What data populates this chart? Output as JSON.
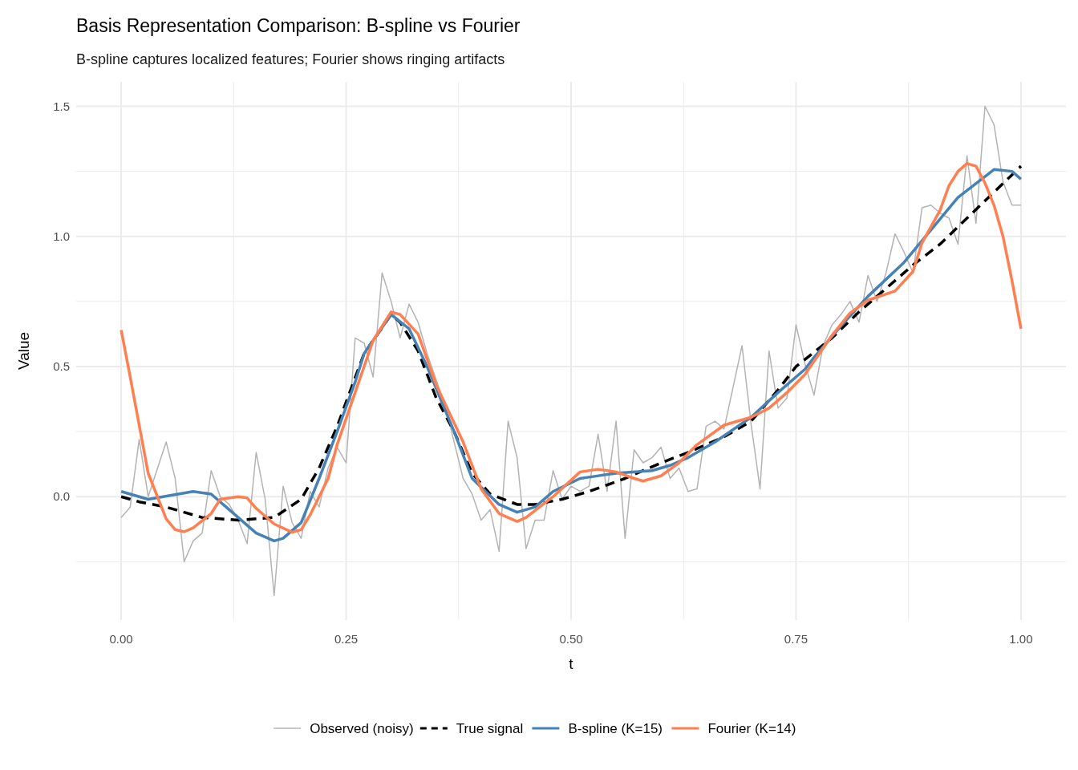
{
  "chart_data": {
    "type": "line",
    "title": "Basis Representation Comparison: B-spline vs Fourier",
    "subtitle": "B-spline captures localized features; Fourier shows ringing artifacts",
    "xlabel": "t",
    "ylabel": "Value",
    "xlim": [
      -0.05,
      1.05
    ],
    "ylim": [
      -0.474,
      1.594
    ],
    "xticks": [
      {
        "value": 0,
        "label": "0.00"
      },
      {
        "value": 0.25,
        "label": "0.25"
      },
      {
        "value": 0.5,
        "label": "0.50"
      },
      {
        "value": 0.75,
        "label": "0.75"
      },
      {
        "value": 1,
        "label": "1.00"
      }
    ],
    "yticks": [
      {
        "value": 0,
        "label": "0.0"
      },
      {
        "value": 0.5,
        "label": "0.5"
      },
      {
        "value": 1,
        "label": "1.0"
      },
      {
        "value": 1.5,
        "label": "1.5"
      }
    ],
    "grid": true,
    "legend": "bottom",
    "series": [
      {
        "name": "Observed (noisy)",
        "color": "#b3b3b3",
        "line_style": "solid",
        "x": [
          0,
          0.01,
          0.02,
          0.03,
          0.05,
          0.06,
          0.07,
          0.08,
          0.09,
          0.1,
          0.11,
          0.12,
          0.13,
          0.14,
          0.15,
          0.16,
          0.17,
          0.18,
          0.19,
          0.2,
          0.21,
          0.22,
          0.23,
          0.24,
          0.25,
          0.26,
          0.27,
          0.28,
          0.29,
          0.3,
          0.31,
          0.32,
          0.33,
          0.34,
          0.35,
          0.36,
          0.37,
          0.38,
          0.39,
          0.4,
          0.41,
          0.42,
          0.43,
          0.44,
          0.45,
          0.46,
          0.47,
          0.48,
          0.49,
          0.5,
          0.51,
          0.52,
          0.53,
          0.54,
          0.55,
          0.56,
          0.57,
          0.58,
          0.59,
          0.6,
          0.61,
          0.62,
          0.63,
          0.64,
          0.65,
          0.66,
          0.67,
          0.68,
          0.69,
          0.7,
          0.71,
          0.72,
          0.73,
          0.74,
          0.75,
          0.76,
          0.77,
          0.78,
          0.79,
          0.8,
          0.81,
          0.82,
          0.83,
          0.84,
          0.85,
          0.86,
          0.87,
          0.88,
          0.89,
          0.9,
          0.91,
          0.92,
          0.93,
          0.94,
          0.95,
          0.96,
          0.97,
          0.98,
          0.99,
          1
        ],
        "values": [
          -0.08,
          -0.04,
          0.22,
          0,
          0.21,
          0.07,
          -0.25,
          -0.17,
          -0.14,
          0.1,
          0,
          -0.03,
          -0.09,
          -0.18,
          0.17,
          -0.01,
          -0.38,
          0.04,
          -0.1,
          -0.16,
          0.02,
          -0.04,
          0.11,
          0.19,
          0.13,
          0.61,
          0.59,
          0.46,
          0.86,
          0.75,
          0.61,
          0.74,
          0.67,
          0.55,
          0.45,
          0.35,
          0.21,
          0.07,
          0.01,
          -0.09,
          -0.05,
          -0.21,
          0.29,
          0.15,
          -0.2,
          -0.09,
          -0.09,
          0.1,
          -0.01,
          0.04,
          0.02,
          0.04,
          0.24,
          0.02,
          0.29,
          -0.16,
          0.18,
          0.13,
          0.15,
          0.19,
          0.07,
          0.11,
          0.02,
          0.03,
          0.27,
          0.29,
          0.26,
          0.42,
          0.58,
          0.28,
          0.03,
          0.56,
          0.34,
          0.38,
          0.66,
          0.51,
          0.39,
          0.58,
          0.66,
          0.7,
          0.75,
          0.67,
          0.85,
          0.75,
          0.86,
          1.01,
          0.94,
          0.86,
          1.11,
          1.12,
          1.09,
          1.07,
          0.97,
          1.31,
          1.05,
          1.5,
          1.43,
          1.21,
          1.12,
          1.12
        ]
      },
      {
        "name": "True signal",
        "color": "#000000",
        "line_style": "dashed",
        "x": [
          0,
          0.02,
          0.05,
          0.09,
          0.13,
          0.17,
          0.2,
          0.22,
          0.24,
          0.27,
          0.3,
          0.31,
          0.33,
          0.35,
          0.37,
          0.39,
          0.41,
          0.44,
          0.46,
          0.49,
          0.52,
          0.56,
          0.6,
          0.63,
          0.67,
          0.7,
          0.73,
          0.75,
          0.79,
          0.82,
          0.85,
          0.88,
          0.91,
          0.94,
          0.97,
          1
        ],
        "values": [
          0,
          -0.02,
          -0.04,
          -0.08,
          -0.09,
          -0.08,
          -0.01,
          0.11,
          0.27,
          0.55,
          0.7,
          0.67,
          0.56,
          0.38,
          0.25,
          0.09,
          0.01,
          -0.03,
          -0.03,
          -0.01,
          0.02,
          0.07,
          0.13,
          0.17,
          0.23,
          0.29,
          0.41,
          0.5,
          0.61,
          0.71,
          0.8,
          0.89,
          0.97,
          1.07,
          1.17,
          1.27
        ]
      },
      {
        "name": "B-spline (K=15)",
        "color": "#4682b4",
        "line_style": "solid",
        "x": [
          0,
          0.03,
          0.08,
          0.1,
          0.12,
          0.15,
          0.17,
          0.18,
          0.2,
          0.22,
          0.24,
          0.26,
          0.27,
          0.3,
          0.32,
          0.34,
          0.37,
          0.39,
          0.42,
          0.44,
          0.46,
          0.48,
          0.51,
          0.52,
          0.55,
          0.59,
          0.61,
          0.63,
          0.66,
          0.7,
          0.73,
          0.76,
          0.77,
          0.8,
          0.83,
          0.87,
          0.9,
          0.93,
          0.96,
          0.97,
          0.99,
          1
        ],
        "values": [
          0.02,
          -0.01,
          0.02,
          0.01,
          -0.05,
          -0.14,
          -0.17,
          -0.16,
          -0.1,
          0.07,
          0.25,
          0.44,
          0.55,
          0.7,
          0.645,
          0.5,
          0.25,
          0.07,
          -0.03,
          -0.06,
          -0.04,
          0.02,
          0.07,
          0.075,
          0.09,
          0.1,
          0.12,
          0.15,
          0.21,
          0.305,
          0.4,
          0.49,
          0.535,
          0.656,
          0.77,
          0.9,
          1.025,
          1.15,
          1.23,
          1.257,
          1.25,
          1.22
        ]
      },
      {
        "name": "Fourier (K=14)",
        "color": "#ff7f50",
        "line_style": "solid",
        "x": [
          0,
          0.01,
          0.02,
          0.03,
          0.05,
          0.06,
          0.07,
          0.08,
          0.1,
          0.11,
          0.13,
          0.14,
          0.15,
          0.17,
          0.19,
          0.2,
          0.21,
          0.23,
          0.24,
          0.26,
          0.28,
          0.3,
          0.31,
          0.33,
          0.35,
          0.38,
          0.4,
          0.42,
          0.44,
          0.45,
          0.48,
          0.51,
          0.53,
          0.55,
          0.57,
          0.58,
          0.6,
          0.62,
          0.64,
          0.67,
          0.7,
          0.72,
          0.74,
          0.76,
          0.79,
          0.81,
          0.83,
          0.86,
          0.88,
          0.89,
          0.91,
          0.92,
          0.93,
          0.94,
          0.95,
          0.96,
          0.97,
          0.98,
          0.99,
          1
        ],
        "values": [
          0.64,
          0.46,
          0.275,
          0.09,
          -0.085,
          -0.127,
          -0.135,
          -0.12,
          -0.065,
          -0.01,
          0,
          -0.005,
          -0.045,
          -0.105,
          -0.137,
          -0.127,
          -0.07,
          0.07,
          0.2,
          0.4,
          0.6,
          0.71,
          0.7,
          0.625,
          0.43,
          0.21,
          0.03,
          -0.065,
          -0.095,
          -0.08,
          0,
          0.095,
          0.105,
          0.095,
          0.07,
          0.06,
          0.08,
          0.13,
          0.2,
          0.275,
          0.305,
          0.34,
          0.4,
          0.47,
          0.62,
          0.705,
          0.755,
          0.79,
          0.865,
          0.975,
          1.1,
          1.195,
          1.25,
          1.28,
          1.27,
          1.205,
          1.12,
          1.0,
          0.83,
          0.645
        ]
      }
    ]
  }
}
